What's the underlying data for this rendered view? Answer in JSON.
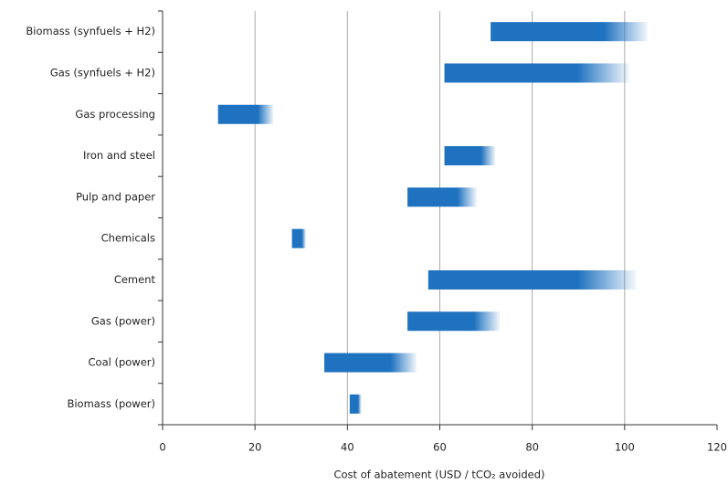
{
  "chart_data": {
    "type": "range-bar",
    "x_label": "Cost of abatement (USD / tCO₂ avoided)",
    "categories": [
      "Biomass (synfuels + H2)",
      "Gas (synfuels + H2)",
      "Gas processing",
      "Iron and steel",
      "Pulp and paper",
      "Chemicals",
      "Cement",
      "Gas (power)",
      "Coal (power)",
      "Biomass (power)"
    ],
    "start": [
      71,
      61,
      12,
      61,
      53,
      28,
      57.5,
      53,
      35,
      40.5
    ],
    "end": [
      105,
      101,
      24,
      72,
      68,
      31,
      102.5,
      73,
      55,
      43
    ],
    "color": "#1f72c0",
    "xlim": [
      0,
      120
    ],
    "xticks": [
      0,
      20,
      40,
      60,
      80,
      100,
      120
    ],
    "grid": true
  }
}
